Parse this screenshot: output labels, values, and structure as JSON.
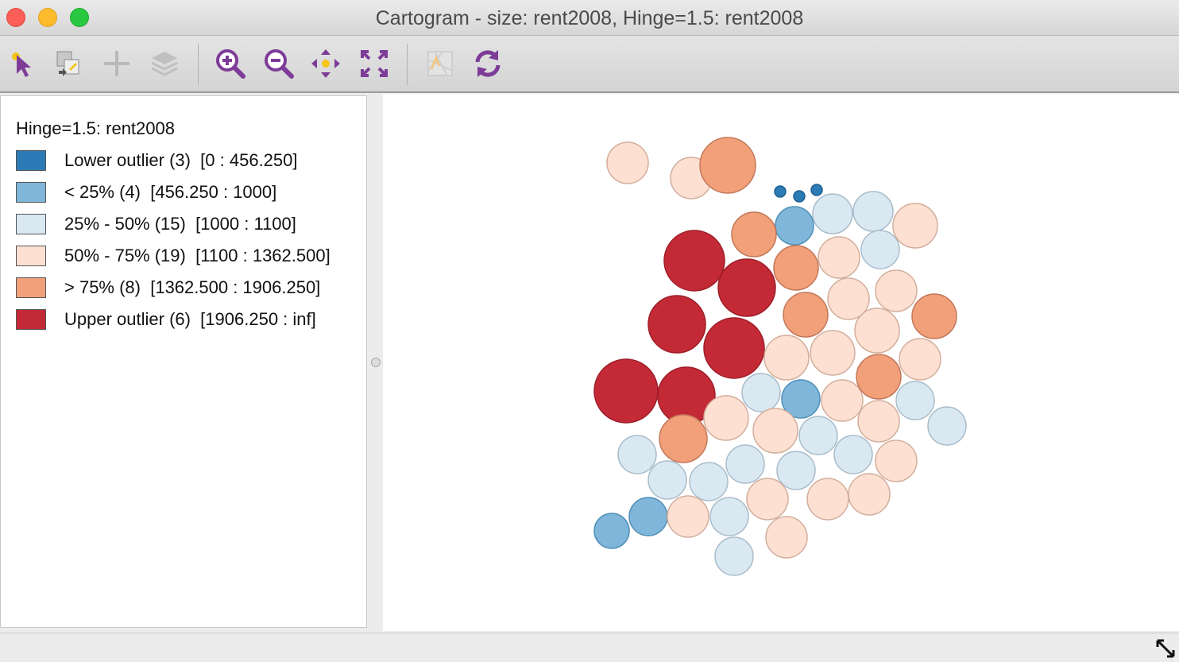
{
  "window": {
    "title": "Cartogram - size: rent2008, Hinge=1.5: rent2008"
  },
  "toolbar": {
    "icons": [
      "select-arrow-icon",
      "copy-map-icon",
      "add-layer-icon",
      "layers-icon",
      "zoom-in-icon",
      "zoom-out-icon",
      "pan-icon",
      "full-extent-icon",
      "basemap-icon",
      "refresh-icon"
    ],
    "accent_color": "#8e44ad"
  },
  "legend": {
    "title": "Hinge=1.5: rent2008",
    "items": [
      {
        "label": "Lower outlier (3)  [0 : 456.250]",
        "color": "#2c7bb6"
      },
      {
        "label": "< 25% (4)  [456.250 : 1000]",
        "color": "#7fb6da"
      },
      {
        "label": "25% - 50% (15)  [1000 : 1100]",
        "color": "#d9e8f1"
      },
      {
        "label": "50% - 75% (19)  [1100 : 1362.500]",
        "color": "#fde0d2"
      },
      {
        "label": "> 75% (8)  [1362.500 : 1906.250]",
        "color": "#f1a07a"
      },
      {
        "label": "Upper outlier (6)  [1906.250 : inf]",
        "color": "#c32a36"
      }
    ]
  }
}
